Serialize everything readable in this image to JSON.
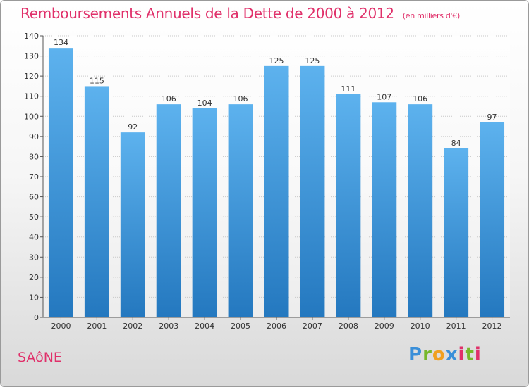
{
  "chart_data": {
    "type": "bar",
    "title": "Remboursements Annuels de la Dette de 2000 à 2012",
    "subtitle": "(en milliers d'€)",
    "categories": [
      "2000",
      "2001",
      "2002",
      "2003",
      "2004",
      "2005",
      "2006",
      "2007",
      "2008",
      "2009",
      "2010",
      "2011",
      "2012"
    ],
    "values": [
      134,
      115,
      92,
      106,
      104,
      106,
      125,
      125,
      111,
      107,
      106,
      84,
      97
    ],
    "ylim": [
      0,
      140
    ],
    "yticks": [
      0,
      10,
      20,
      30,
      40,
      50,
      60,
      70,
      80,
      90,
      100,
      110,
      120,
      130,
      140
    ],
    "grid": true,
    "bar_color": "#3a95dd"
  },
  "footer": {
    "place": "SAôNE",
    "logo": [
      "P",
      "r",
      "o",
      "x",
      "i",
      "t",
      "i"
    ]
  }
}
